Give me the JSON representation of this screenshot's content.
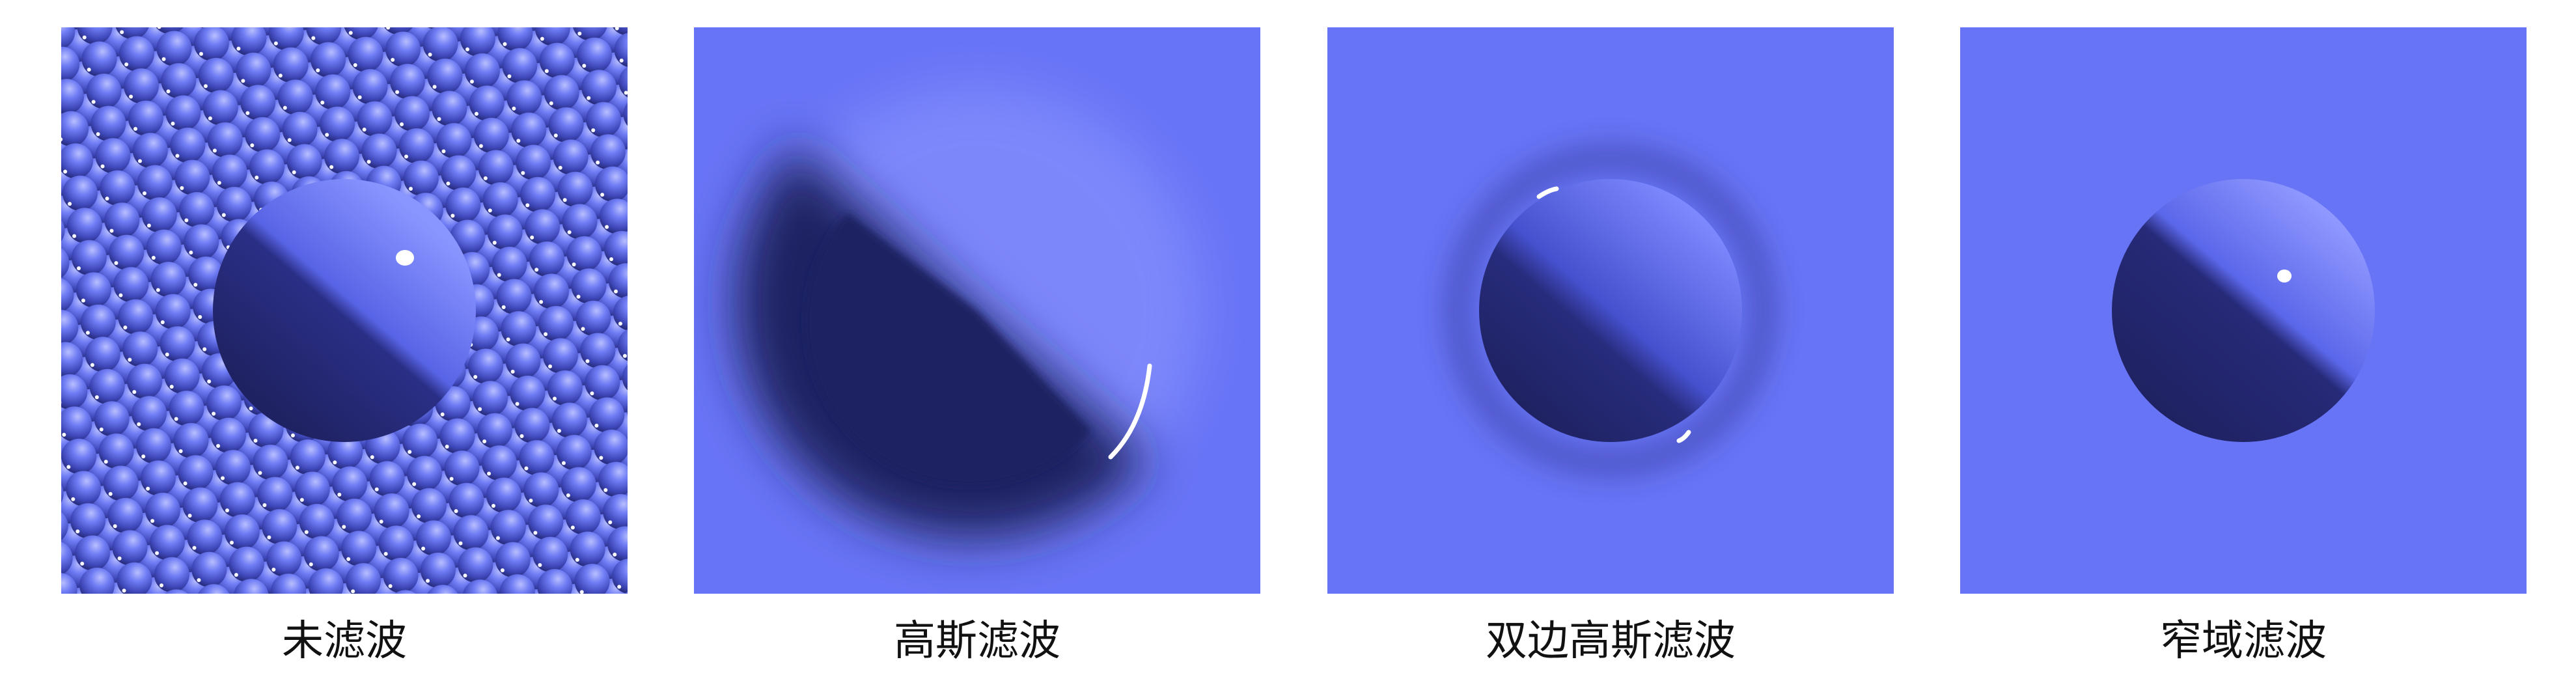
{
  "panels": [
    {
      "caption": "未滤波"
    },
    {
      "caption": "高斯滤波"
    },
    {
      "caption": "双边高斯滤波"
    },
    {
      "caption": "窄域滤波"
    }
  ],
  "colors": {
    "background": "#6874f6",
    "shadow": "#1f2262",
    "highlight": "#9aa4ff",
    "specular": "#ffffff",
    "caption_text": "#111111"
  }
}
